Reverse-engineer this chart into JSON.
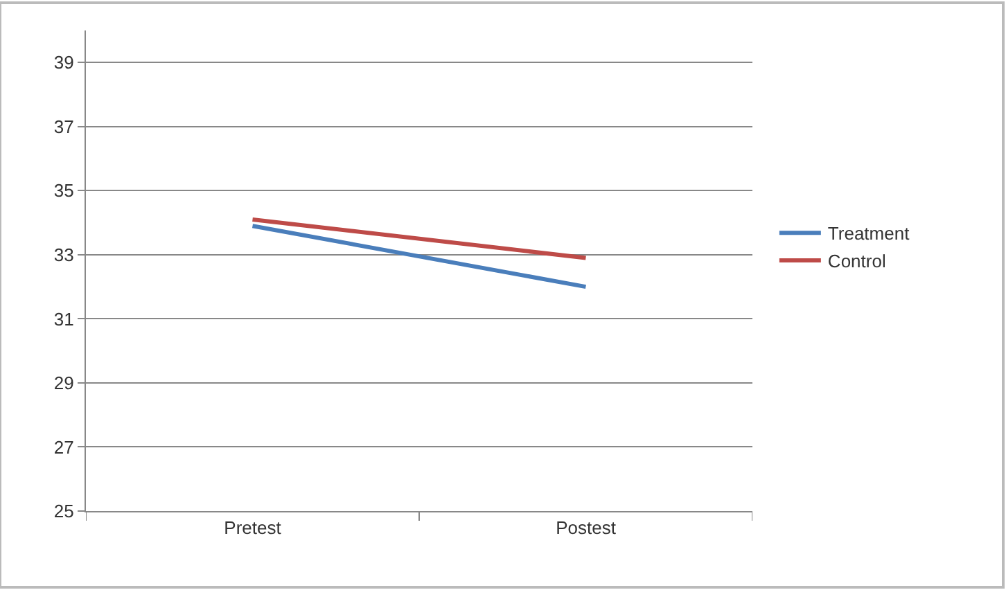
{
  "chart_data": {
    "type": "line",
    "categories": [
      "Pretest",
      "Postest"
    ],
    "series": [
      {
        "name": "Treatment",
        "color": "#4a7ebb",
        "values": [
          33.9,
          32.0
        ]
      },
      {
        "name": "Control",
        "color": "#be4b48",
        "values": [
          34.1,
          32.9
        ]
      }
    ],
    "ylim": [
      25,
      40
    ],
    "yticks": [
      25,
      27,
      29,
      31,
      33,
      35,
      37,
      39
    ],
    "grid": "y",
    "legend": "right",
    "marker": "none",
    "line_style": "solid"
  }
}
